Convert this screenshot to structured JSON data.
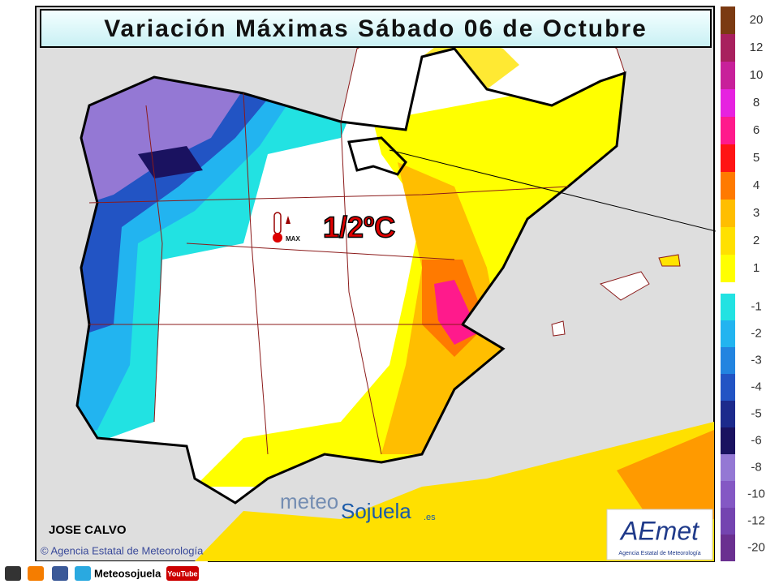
{
  "title": "Variación Máximas Sábado 06 de Octubre",
  "annotation": "1/2ºC",
  "icon_label": "MAX",
  "legend": {
    "warm": [
      {
        "label": 20,
        "color": "#7b3a12"
      },
      {
        "label": 12,
        "color": "#a8205e"
      },
      {
        "label": 10,
        "color": "#c8209a"
      },
      {
        "label": 8,
        "color": "#e622e0"
      },
      {
        "label": 6,
        "color": "#ff1a8c"
      },
      {
        "label": 5,
        "color": "#ff1414"
      },
      {
        "label": 4,
        "color": "#ff7a00"
      },
      {
        "label": 3,
        "color": "#ffbe00"
      },
      {
        "label": 2,
        "color": "#ffe000"
      },
      {
        "label": 1,
        "color": "#ffff00"
      }
    ],
    "cold": [
      {
        "label": -1,
        "color": "#22e2e2"
      },
      {
        "label": -2,
        "color": "#22b4f0"
      },
      {
        "label": -3,
        "color": "#2284e0"
      },
      {
        "label": -4,
        "color": "#2254c4"
      },
      {
        "label": -5,
        "color": "#1c2a8c"
      },
      {
        "label": -6,
        "color": "#1a1260"
      },
      {
        "label": -8,
        "color": "#9478d4"
      },
      {
        "label": -10,
        "color": "#8458c4"
      },
      {
        "label": -12,
        "color": "#7444b0"
      },
      {
        "label": -20,
        "color": "#6a3090"
      }
    ]
  },
  "author": "JOSE CALVO",
  "credit": "© Agencia Estatal de Meteorología",
  "watermark": {
    "part1": "meteo",
    "part2": "Sojuela",
    "suffix": ".es"
  },
  "logo": {
    "name": "AEmet",
    "subtitle": "Agencia Estatal de Meteorología"
  },
  "footer": {
    "handle": "Meteosojuela",
    "youtube": "YouTube"
  }
}
